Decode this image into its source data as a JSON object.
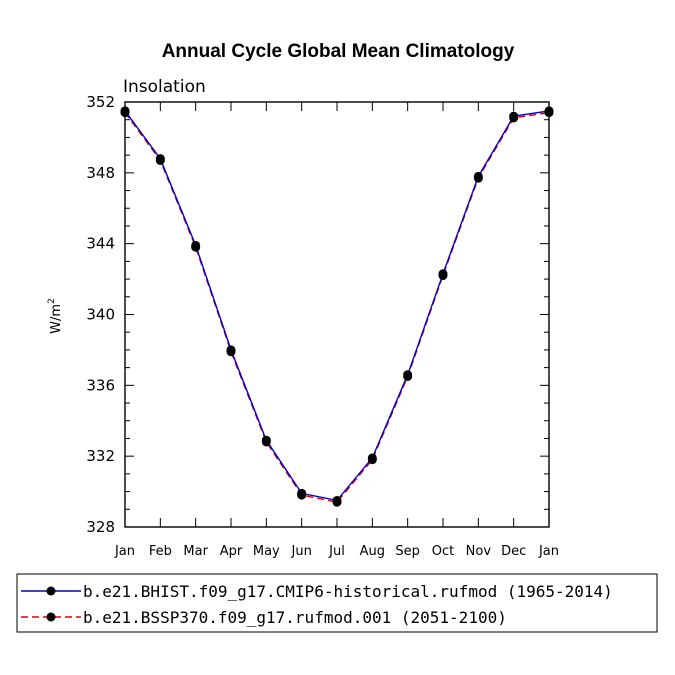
{
  "chart_data": {
    "type": "line",
    "title": "Annual Cycle Global Mean Climatology",
    "subtitle": "Insolation",
    "xlabel": "",
    "ylabel_base": "W/m",
    "ylabel_sup": "2",
    "categories": [
      "Jan",
      "Feb",
      "Mar",
      "Apr",
      "May",
      "Jun",
      "Jul",
      "Aug",
      "Sep",
      "Oct",
      "Nov",
      "Dec",
      "Jan"
    ],
    "ylim": [
      328,
      352
    ],
    "yticks": [
      328,
      332,
      336,
      340,
      344,
      348,
      352
    ],
    "series": [
      {
        "name": "b.e21.BHIST.f09_g17.CMIP6-historical.rufmod (1965-2014)",
        "color": "#0000cc",
        "dash": "solid",
        "values": [
          351.5,
          348.8,
          343.9,
          338.0,
          332.9,
          329.9,
          329.5,
          331.9,
          336.6,
          342.3,
          347.8,
          351.2,
          351.5
        ]
      },
      {
        "name": "b.e21.BSSP370.f09_g17.rufmod.001 (2051-2100)",
        "color": "#e00000",
        "dash": "dashed",
        "values": [
          351.4,
          348.7,
          343.8,
          337.9,
          332.8,
          329.8,
          329.4,
          331.8,
          336.5,
          342.2,
          347.7,
          351.1,
          351.4
        ]
      }
    ]
  }
}
